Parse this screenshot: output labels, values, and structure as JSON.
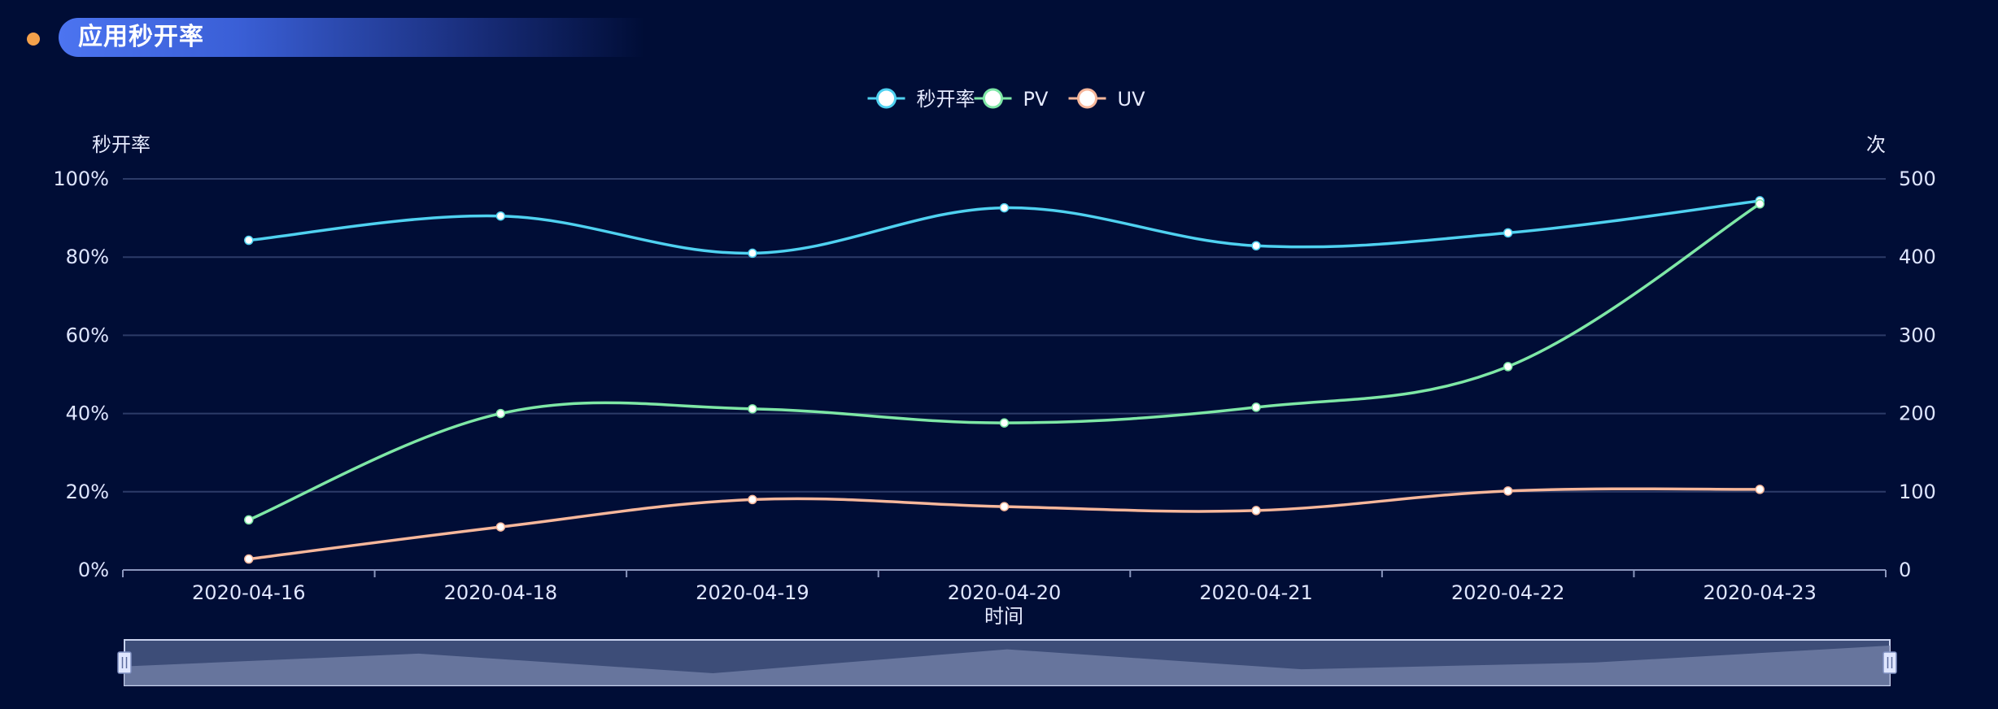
{
  "header": {
    "title": "应用秒开率"
  },
  "chart_data": {
    "type": "line",
    "title": "应用秒开率",
    "categories": [
      "2020-04-16",
      "2020-04-18",
      "2020-04-19",
      "2020-04-20",
      "2020-04-21",
      "2020-04-22",
      "2020-04-23"
    ],
    "xlabel": "时间",
    "ylabel_left": "秒开率",
    "ylabel_right": "次",
    "y_left": {
      "min": 0,
      "max": 100,
      "ticks": [
        0,
        20,
        40,
        60,
        80,
        100
      ],
      "tick_labels": [
        "0%",
        "20%",
        "40%",
        "60%",
        "80%",
        "100%"
      ]
    },
    "y_right": {
      "min": 0,
      "max": 500,
      "ticks": [
        0,
        100,
        200,
        300,
        400,
        500
      ],
      "tick_labels": [
        "0",
        "100",
        "200",
        "300",
        "400",
        "500"
      ]
    },
    "grid": true,
    "legend_position": "top-center",
    "smooth": true,
    "series": [
      {
        "name": "秒开率",
        "axis": "left",
        "color": "#4fd1f0",
        "values": [
          84.3,
          90.5,
          81,
          92.6,
          82.9,
          86.2,
          94.4
        ]
      },
      {
        "name": "PV",
        "axis": "right",
        "color": "#7ee7a6",
        "values": [
          64,
          200,
          206,
          188,
          208,
          260,
          468
        ]
      },
      {
        "name": "UV",
        "axis": "right",
        "color": "#f7b79b",
        "values": [
          14,
          55,
          90,
          81,
          76,
          101,
          103
        ]
      }
    ],
    "data_zoom": {
      "type": "slider",
      "start_percent": 0,
      "end_percent": 100,
      "preview_series": "秒开率"
    }
  }
}
